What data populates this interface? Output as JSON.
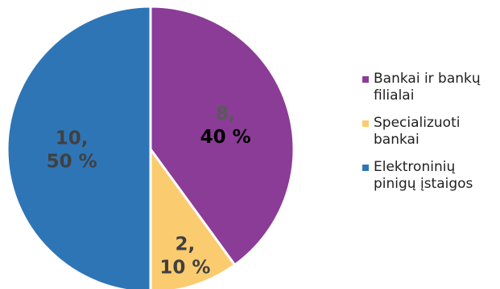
{
  "chart_data": {
    "type": "pie",
    "categories": [
      "Bankai ir bankų filialai",
      "Specializuoti bankai",
      "Elektroninių pinigų įstaigos"
    ],
    "values": [
      8,
      2,
      10
    ],
    "percent_labels": [
      "40 %",
      "10 %",
      "50 %"
    ],
    "colors": [
      "#8B3C97",
      "#FBCB70",
      "#2E75B6"
    ],
    "label_lines": [
      [
        "8,",
        "40 %"
      ],
      [
        "2,",
        "10 %"
      ],
      [
        "10,",
        "50 %"
      ]
    ],
    "label_colors": [
      [
        "#595959",
        "#000000"
      ],
      [
        "#404040",
        "#404040"
      ],
      [
        "#404040",
        "#404040"
      ]
    ],
    "legend_position": "right",
    "start_angle_deg": 0,
    "direction": "clockwise"
  },
  "legend": {
    "items": [
      {
        "label": "Bankai ir bankų filialai",
        "color": "#8B3C97"
      },
      {
        "label": "Specializuoti bankai",
        "color": "#FBCB70"
      },
      {
        "label": "Elektroninių pinigų įstaigos",
        "color": "#2E75B6"
      }
    ]
  }
}
